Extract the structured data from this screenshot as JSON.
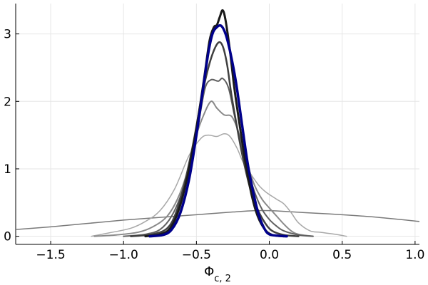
{
  "chart_data": {
    "type": "line",
    "title": "",
    "xlabel": {
      "base": "Φ",
      "subscript": "c, 2"
    },
    "ylabel": "",
    "xlim": [
      -1.74,
      1.03
    ],
    "ylim": [
      -0.12,
      3.45
    ],
    "grid": true,
    "legend": "none",
    "x_ticks": [
      {
        "value": -1.5,
        "label": "−1.5"
      },
      {
        "value": -1.0,
        "label": "−1.0"
      },
      {
        "value": -0.5,
        "label": "−0.5"
      },
      {
        "value": 0.0,
        "label": "0.0"
      },
      {
        "value": 0.5,
        "label": "0.5"
      },
      {
        "value": 1.0,
        "label": "1.0"
      }
    ],
    "y_ticks": [
      {
        "value": 0,
        "label": "0"
      },
      {
        "value": 1,
        "label": "1"
      },
      {
        "value": 2,
        "label": "2"
      },
      {
        "value": 3,
        "label": "3"
      }
    ],
    "series": [
      {
        "color": "#7a7a7a",
        "width": 1.5,
        "points": [
          [
            -1.74,
            0.1
          ],
          [
            -1.5,
            0.14
          ],
          [
            -1.25,
            0.19
          ],
          [
            -1.0,
            0.24
          ],
          [
            -0.75,
            0.28
          ],
          [
            -0.5,
            0.32
          ],
          [
            -0.25,
            0.36
          ],
          [
            -0.1,
            0.38
          ],
          [
            0.0,
            0.38
          ],
          [
            0.1,
            0.37
          ],
          [
            0.25,
            0.35
          ],
          [
            0.5,
            0.32
          ],
          [
            0.75,
            0.28
          ],
          [
            1.03,
            0.22
          ]
        ]
      },
      {
        "color": "#a8a8a8",
        "width": 1.5,
        "points": [
          [
            -1.22,
            0.0
          ],
          [
            -1.1,
            0.05
          ],
          [
            -0.95,
            0.12
          ],
          [
            -0.85,
            0.22
          ],
          [
            -0.75,
            0.38
          ],
          [
            -0.65,
            0.7
          ],
          [
            -0.55,
            1.2
          ],
          [
            -0.47,
            1.45
          ],
          [
            -0.42,
            1.5
          ],
          [
            -0.36,
            1.48
          ],
          [
            -0.31,
            1.52
          ],
          [
            -0.27,
            1.48
          ],
          [
            -0.22,
            1.3
          ],
          [
            -0.18,
            1.1
          ],
          [
            -0.12,
            0.9
          ],
          [
            -0.07,
            0.75
          ],
          [
            -0.02,
            0.65
          ],
          [
            0.05,
            0.55
          ],
          [
            0.1,
            0.48
          ],
          [
            0.15,
            0.35
          ],
          [
            0.2,
            0.2
          ],
          [
            0.28,
            0.08
          ],
          [
            0.35,
            0.06
          ],
          [
            0.45,
            0.03
          ],
          [
            0.53,
            0.0
          ]
        ]
      },
      {
        "color": "#8a8a8a",
        "width": 2,
        "points": [
          [
            -1.2,
            0.0
          ],
          [
            -1.05,
            0.02
          ],
          [
            -0.9,
            0.06
          ],
          [
            -0.8,
            0.14
          ],
          [
            -0.7,
            0.3
          ],
          [
            -0.62,
            0.6
          ],
          [
            -0.55,
            1.05
          ],
          [
            -0.5,
            1.5
          ],
          [
            -0.45,
            1.8
          ],
          [
            -0.4,
            2.0
          ],
          [
            -0.36,
            1.9
          ],
          [
            -0.31,
            1.8
          ],
          [
            -0.26,
            1.78
          ],
          [
            -0.22,
            1.6
          ],
          [
            -0.18,
            1.3
          ],
          [
            -0.14,
            1.0
          ],
          [
            -0.1,
            0.75
          ],
          [
            -0.05,
            0.55
          ],
          [
            0.0,
            0.42
          ],
          [
            0.05,
            0.3
          ],
          [
            0.1,
            0.18
          ],
          [
            0.15,
            0.08
          ],
          [
            0.2,
            0.03
          ],
          [
            0.3,
            0.0
          ]
        ]
      },
      {
        "color": "#606060",
        "width": 2,
        "points": [
          [
            -1.0,
            0.0
          ],
          [
            -0.85,
            0.03
          ],
          [
            -0.75,
            0.1
          ],
          [
            -0.67,
            0.3
          ],
          [
            -0.6,
            0.65
          ],
          [
            -0.53,
            1.2
          ],
          [
            -0.48,
            1.75
          ],
          [
            -0.44,
            2.2
          ],
          [
            -0.4,
            2.32
          ],
          [
            -0.35,
            2.3
          ],
          [
            -0.32,
            2.34
          ],
          [
            -0.28,
            2.2
          ],
          [
            -0.24,
            1.8
          ],
          [
            -0.2,
            1.4
          ],
          [
            -0.15,
            1.0
          ],
          [
            -0.1,
            0.65
          ],
          [
            -0.05,
            0.4
          ],
          [
            0.0,
            0.25
          ],
          [
            0.05,
            0.15
          ],
          [
            0.1,
            0.08
          ],
          [
            0.2,
            0.02
          ],
          [
            0.3,
            0.0
          ]
        ]
      },
      {
        "color": "#404040",
        "width": 2.5,
        "points": [
          [
            -0.95,
            0.0
          ],
          [
            -0.8,
            0.03
          ],
          [
            -0.7,
            0.12
          ],
          [
            -0.64,
            0.35
          ],
          [
            -0.58,
            0.8
          ],
          [
            -0.52,
            1.4
          ],
          [
            -0.47,
            2.0
          ],
          [
            -0.43,
            2.4
          ],
          [
            -0.39,
            2.7
          ],
          [
            -0.35,
            2.87
          ],
          [
            -0.32,
            2.82
          ],
          [
            -0.29,
            2.55
          ],
          [
            -0.26,
            2.1
          ],
          [
            -0.22,
            1.6
          ],
          [
            -0.18,
            1.15
          ],
          [
            -0.13,
            0.7
          ],
          [
            -0.08,
            0.4
          ],
          [
            -0.03,
            0.2
          ],
          [
            0.02,
            0.08
          ],
          [
            0.1,
            0.02
          ],
          [
            0.2,
            0.0
          ]
        ]
      },
      {
        "color": "#1a1a1a",
        "width": 3,
        "points": [
          [
            -0.85,
            0.0
          ],
          [
            -0.75,
            0.03
          ],
          [
            -0.68,
            0.12
          ],
          [
            -0.62,
            0.4
          ],
          [
            -0.56,
            0.9
          ],
          [
            -0.5,
            1.6
          ],
          [
            -0.45,
            2.3
          ],
          [
            -0.41,
            2.9
          ],
          [
            -0.38,
            3.1
          ],
          [
            -0.36,
            3.13
          ],
          [
            -0.34,
            3.25
          ],
          [
            -0.32,
            3.35
          ],
          [
            -0.3,
            3.2
          ],
          [
            -0.27,
            2.75
          ],
          [
            -0.24,
            2.2
          ],
          [
            -0.2,
            1.6
          ],
          [
            -0.16,
            1.05
          ],
          [
            -0.12,
            0.6
          ],
          [
            -0.08,
            0.3
          ],
          [
            -0.03,
            0.1
          ],
          [
            0.02,
            0.02
          ],
          [
            0.1,
            0.0
          ]
        ]
      },
      {
        "color": "#00008b",
        "width": 3.5,
        "points": [
          [
            -0.82,
            0.0
          ],
          [
            -0.73,
            0.02
          ],
          [
            -0.67,
            0.1
          ],
          [
            -0.61,
            0.35
          ],
          [
            -0.55,
            0.85
          ],
          [
            -0.5,
            1.5
          ],
          [
            -0.46,
            2.1
          ],
          [
            -0.42,
            2.7
          ],
          [
            -0.39,
            3.0
          ],
          [
            -0.36,
            3.1
          ],
          [
            -0.33,
            3.12
          ],
          [
            -0.3,
            3.0
          ],
          [
            -0.27,
            2.75
          ],
          [
            -0.23,
            2.3
          ],
          [
            -0.19,
            1.7
          ],
          [
            -0.15,
            1.1
          ],
          [
            -0.11,
            0.65
          ],
          [
            -0.07,
            0.3
          ],
          [
            -0.03,
            0.1
          ],
          [
            0.0,
            0.03
          ],
          [
            0.05,
            0.01
          ],
          [
            0.12,
            0.0
          ]
        ]
      }
    ]
  }
}
